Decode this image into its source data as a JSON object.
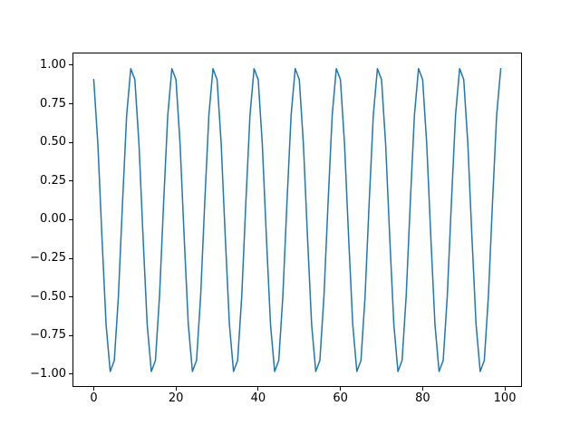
{
  "figure": {
    "background": "#ffffff",
    "spine_color": "#000000",
    "tick_color": "#000000",
    "label_color": "#000000"
  },
  "chart_data": {
    "type": "line",
    "title": "",
    "xlabel": "",
    "ylabel": "",
    "legend": null,
    "grid": false,
    "line_color": "#1f77b4",
    "line_width": 1.5,
    "xlim": [
      -4.95,
      103.95
    ],
    "ylim": [
      -1.078,
      1.078
    ],
    "x_ticks": {
      "values": [
        0,
        20,
        40,
        60,
        80,
        100
      ],
      "labels": [
        "0",
        "20",
        "40",
        "60",
        "80",
        "100"
      ]
    },
    "y_ticks": {
      "values": [
        1.0,
        0.75,
        0.5,
        0.25,
        0.0,
        -0.25,
        -0.5,
        -0.75,
        -1.0
      ],
      "labels": [
        "1.00",
        "0.75",
        "0.50",
        "0.25",
        "0.00",
        "−0.25",
        "−0.50",
        "−0.75",
        "−1.00"
      ]
    },
    "x": [
      0,
      1,
      2,
      3,
      4,
      5,
      6,
      7,
      8,
      9,
      10,
      11,
      12,
      13,
      14,
      15,
      16,
      17,
      18,
      19,
      20,
      21,
      22,
      23,
      24,
      25,
      26,
      27,
      28,
      29,
      30,
      31,
      32,
      33,
      34,
      35,
      36,
      37,
      38,
      39,
      40,
      41,
      42,
      43,
      44,
      45,
      46,
      47,
      48,
      49,
      50,
      51,
      52,
      53,
      54,
      55,
      56,
      57,
      58,
      59,
      60,
      61,
      62,
      63,
      64,
      65,
      66,
      67,
      68,
      69,
      70,
      71,
      72,
      73,
      74,
      75,
      76,
      77,
      78,
      79,
      80,
      81,
      82,
      83,
      84,
      85,
      86,
      87,
      88,
      89,
      90,
      91,
      92,
      93,
      94,
      95,
      96,
      97,
      98,
      99
    ],
    "y": [
      0.909,
      0.491,
      -0.115,
      -0.677,
      -0.98,
      -0.909,
      -0.491,
      0.115,
      0.677,
      0.98,
      0.909,
      0.491,
      -0.115,
      -0.677,
      -0.98,
      -0.909,
      -0.491,
      0.115,
      0.677,
      0.98,
      0.909,
      0.491,
      -0.115,
      -0.677,
      -0.98,
      -0.909,
      -0.491,
      0.115,
      0.677,
      0.98,
      0.909,
      0.491,
      -0.115,
      -0.677,
      -0.98,
      -0.909,
      -0.491,
      0.115,
      0.677,
      0.98,
      0.909,
      0.491,
      -0.115,
      -0.677,
      -0.98,
      -0.909,
      -0.491,
      0.115,
      0.677,
      0.98,
      0.909,
      0.491,
      -0.115,
      -0.677,
      -0.98,
      -0.909,
      -0.491,
      0.115,
      0.677,
      0.98,
      0.909,
      0.491,
      -0.115,
      -0.677,
      -0.98,
      -0.909,
      -0.491,
      0.115,
      0.677,
      0.98,
      0.909,
      0.491,
      -0.115,
      -0.677,
      -0.98,
      -0.909,
      -0.491,
      0.115,
      0.677,
      0.98,
      0.909,
      0.491,
      -0.115,
      -0.677,
      -0.98,
      -0.909,
      -0.491,
      0.115,
      0.677,
      0.98,
      0.909,
      0.491,
      -0.115,
      -0.677,
      -0.98,
      -0.909,
      -0.491,
      0.115,
      0.677,
      0.98
    ]
  }
}
